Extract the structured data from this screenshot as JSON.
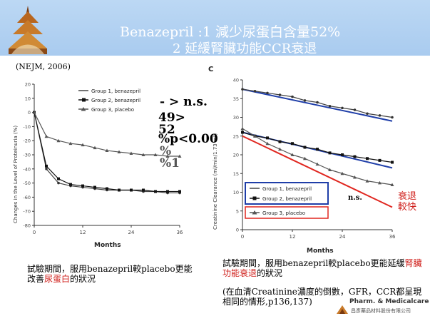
{
  "header": {
    "title_line1": "Benazepril :1 減少尿蛋白含量52%",
    "title_line2": "2 延緩腎臟功能CCR衰退"
  },
  "citation": "(NEJM, 2006)",
  "left_chart": {
    "ylabel": "Changes in the Level of Proteinuria (%)",
    "xlabel": "Months",
    "xticks": [
      "0",
      "12",
      "24",
      "36"
    ],
    "yticks": [
      "20",
      "10",
      "0",
      "-10",
      "-20",
      "-30",
      "-40",
      "-50",
      "-60",
      "-70",
      "-80"
    ],
    "legend": [
      "Group 1, benazepril",
      "Group 2, benazepril",
      "Group 3, placebo"
    ]
  },
  "right_chart": {
    "panel_label": "C",
    "ylabel": "Creatinine Clearance (ml/min/1.73 m²)",
    "xlabel": "Months",
    "xticks": [
      "0",
      "12",
      "24",
      "36"
    ],
    "yticks": [
      "40",
      "35",
      "30",
      "25",
      "20",
      "15",
      "10",
      "5",
      "0"
    ],
    "legend": [
      "Group 1, benazepril",
      "Group 2, benazepril",
      "Group 3, placebo"
    ]
  },
  "overlay": {
    "line1": "- > n.s.",
    "line2": "49>",
    "line3": "52",
    "line4": "%p<0.00",
    "line5": "%",
    "line6": "%1",
    "ns": "n.s."
  },
  "decline_label": "衰退\n較快",
  "captions": {
    "left_pre": "試驗期間，服用benazepril較placebo更能改善",
    "left_highlight": "尿蛋白",
    "left_post": "的狀況",
    "right_pre": "試驗期間，服用benazepril較placebo更能延緩",
    "right_highlight": "腎臟功能衰退",
    "right_post": "的狀況",
    "right_note": "(在血清Creatinine濃度的倒數，GFR，CCR都呈現相同的情形,p136,137)"
  },
  "footer": {
    "company": "Pharm. & Medicalcare",
    "company_cn": "昌彥藥品材料股份有限公司"
  },
  "colors": {
    "header_band": "#a9cbef",
    "blue_line": "#1f3ea8",
    "red_line": "#e0261f",
    "highlight": "#d0211d"
  },
  "chart_data": [
    {
      "type": "line",
      "x": [
        0,
        3,
        6,
        9,
        12,
        15,
        18,
        21,
        24,
        27,
        30,
        33,
        36
      ],
      "series": [
        {
          "name": "Group 1, benazepril",
          "values": [
            0,
            -40,
            -50,
            -52,
            -53,
            -54,
            -55,
            -55,
            -55,
            -56,
            -56,
            -57,
            -57
          ]
        },
        {
          "name": "Group 2, benazepril",
          "values": [
            0,
            -38,
            -47,
            -51,
            -52,
            -53,
            -54,
            -55,
            -55,
            -55,
            -56,
            -56,
            -56
          ]
        },
        {
          "name": "Group 3, placebo",
          "values": [
            0,
            -17,
            -20,
            -22,
            -23,
            -25,
            -27,
            -28,
            -29,
            -30,
            -30,
            -31,
            -31
          ]
        }
      ],
      "xlabel": "Months",
      "ylabel": "Changes in the Level of Proteinuria (%)",
      "ylim": [
        -80,
        20
      ]
    },
    {
      "type": "line",
      "x": [
        0,
        3,
        6,
        9,
        12,
        15,
        18,
        21,
        24,
        27,
        30,
        33,
        36
      ],
      "series": [
        {
          "name": "Group 1, benazepril",
          "values": [
            37.5,
            37,
            36.5,
            36,
            35.5,
            34.5,
            34,
            33,
            32.5,
            32,
            31,
            30.5,
            30
          ]
        },
        {
          "name": "Group 2, benazepril",
          "values": [
            26,
            25,
            24.5,
            23.5,
            23,
            22,
            21.5,
            20.5,
            20,
            19.5,
            19,
            18.5,
            18
          ]
        },
        {
          "name": "Group 3, placebo",
          "values": [
            27,
            25,
            23,
            21.5,
            20,
            19,
            17.5,
            16,
            15,
            14,
            13,
            12.5,
            12
          ]
        }
      ],
      "xlabel": "Months",
      "ylabel": "Creatinine Clearance (ml/min/1.73 m²)",
      "ylim": [
        0,
        40
      ]
    }
  ]
}
